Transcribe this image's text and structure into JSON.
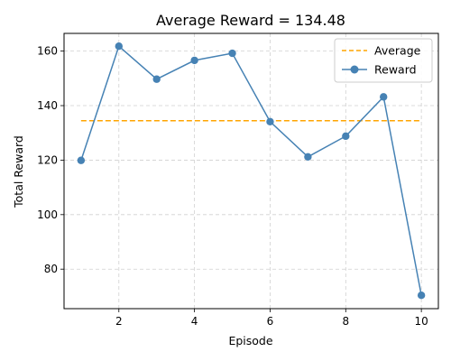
{
  "chart_data": {
    "type": "line",
    "title": "Average Reward = 134.48",
    "xlabel": "Episode",
    "ylabel": "Total Reward",
    "xlim": [
      0.55,
      10.45
    ],
    "ylim": [
      65.5,
      166.5
    ],
    "xticks": [
      2,
      4,
      6,
      8,
      10
    ],
    "yticks": [
      80,
      100,
      120,
      140,
      160
    ],
    "grid": true,
    "legend_position": "top-right",
    "x": [
      1,
      2,
      3,
      4,
      5,
      6,
      7,
      8,
      9,
      10
    ],
    "series": [
      {
        "name": "Average",
        "style": "dashed",
        "color": "#ffa500",
        "values": [
          134.48,
          134.48,
          134.48,
          134.48,
          134.48,
          134.48,
          134.48,
          134.48,
          134.48,
          134.48
        ]
      },
      {
        "name": "Reward",
        "style": "line-markers",
        "color": "#4682b4",
        "values": [
          119.9,
          161.8,
          149.7,
          156.6,
          159.2,
          134.1,
          121.2,
          128.8,
          143.2,
          70.4
        ]
      }
    ]
  }
}
